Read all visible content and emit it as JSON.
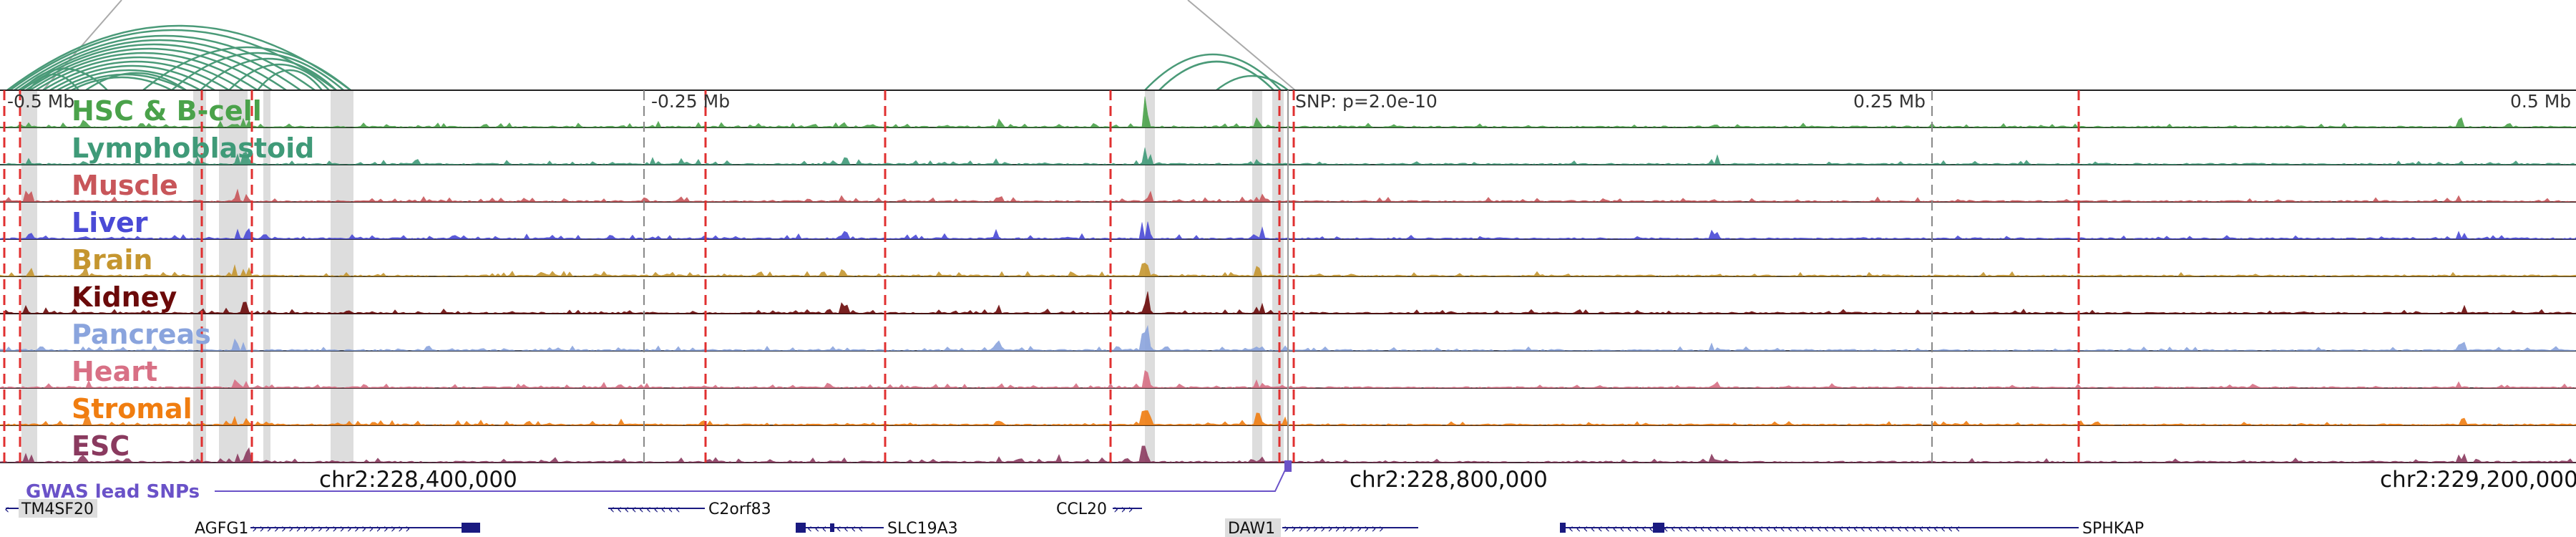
{
  "axis_labels": {
    "minus_half": "-0.5 Mb",
    "minus_quarter": "-0.25 Mb",
    "snp": "SNP: p=2.0e-10",
    "plus_quarter": "0.25 Mb",
    "plus_half": "0.5 Mb"
  },
  "tracks": [
    {
      "id": "hsc",
      "label": "HSC & B-cell",
      "color": "#4aa24a"
    },
    {
      "id": "lympho",
      "label": "Lymphoblastoid",
      "color": "#3f9a78"
    },
    {
      "id": "muscle",
      "label": "Muscle",
      "color": "#c8565a"
    },
    {
      "id": "liver",
      "label": "Liver",
      "color": "#4a4ad6"
    },
    {
      "id": "brain",
      "label": "Brain",
      "color": "#c5962f"
    },
    {
      "id": "kidney",
      "label": "Kidney",
      "color": "#6b0a0a"
    },
    {
      "id": "pancreas",
      "label": "Pancreas",
      "color": "#8aa4dd"
    },
    {
      "id": "heart",
      "label": "Heart",
      "color": "#d87085"
    },
    {
      "id": "stromal",
      "label": "Stromal",
      "color": "#f07d10"
    },
    {
      "id": "esc",
      "label": "ESC",
      "color": "#8a3a5f"
    }
  ],
  "gwas": {
    "label": "GWAS lead SNPs",
    "color": "#6a52c8"
  },
  "coordinates": {
    "c1": "chr2:228,400,000",
    "c2": "chr2:228,800,000",
    "c3": "chr2:229,200,000"
  },
  "genes": {
    "tm4sf20": "TM4SF20",
    "agfg1": "AGFG1",
    "c2orf83": "C2orf83",
    "slc19a3": "SLC19A3",
    "ccl20": "CCL20",
    "daw1": "DAW1",
    "sphkap": "SPHKAP"
  },
  "colors": {
    "arc": "#4a9a78",
    "red_line": "#e03030",
    "gene": "#1a1a80",
    "highlight": "#dddddd"
  }
}
